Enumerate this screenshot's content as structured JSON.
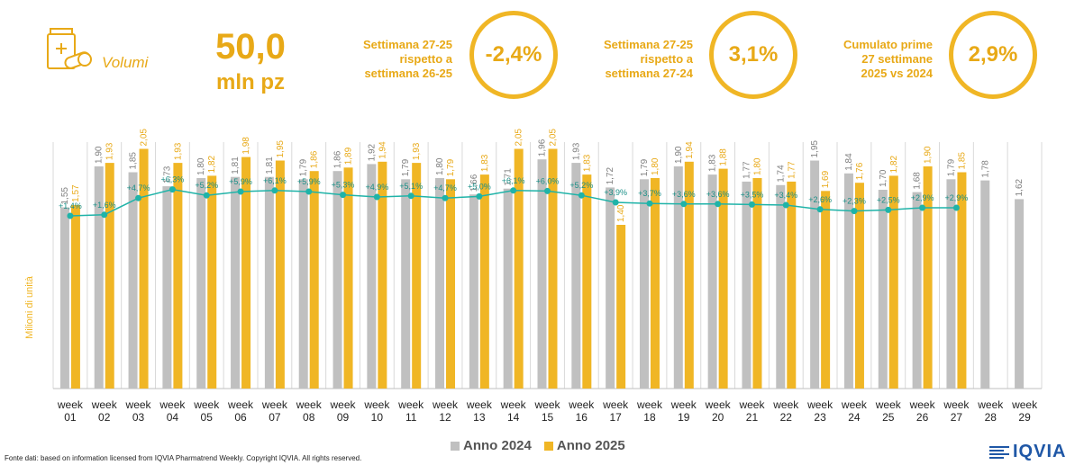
{
  "header": {
    "volumi_label": "Volumi",
    "volume_value": "50,0",
    "volume_unit": "mln pz",
    "kpis": [
      {
        "lines": [
          "Settimana 27-25",
          "rispetto a",
          "settimana 26-25"
        ],
        "value": "-2,4%"
      },
      {
        "lines": [
          "Settimana 27-25",
          "rispetto a",
          "settimana 27-24"
        ],
        "value": "3,1%"
      },
      {
        "lines": [
          "Cumulato prime",
          "27 settimane",
          "2025 vs 2024"
        ],
        "value": "2,9%"
      }
    ]
  },
  "colors": {
    "accent": "#e8a917",
    "anno_2024": "#c0c0c0",
    "anno_2025": "#f0b625",
    "growth_line": "#1fb3a8"
  },
  "icons": [
    "pill-box-icon"
  ],
  "chart_data": {
    "type": "bar",
    "ylabel": "Milioni di unità",
    "categories": [
      "week 01",
      "week 02",
      "week 03",
      "week 04",
      "week 05",
      "week 06",
      "week 07",
      "week 08",
      "week 09",
      "week 10",
      "week 11",
      "week 12",
      "week 13",
      "week 14",
      "week 15",
      "week 16",
      "week 17",
      "week 18",
      "week 19",
      "week 20",
      "week 21",
      "week 22",
      "week 23",
      "week 24",
      "week 25",
      "week 26",
      "week 27",
      "week 28",
      "week 29"
    ],
    "series": [
      {
        "name": "Anno 2024",
        "values": [
          1.55,
          1.9,
          1.85,
          1.73,
          1.8,
          1.81,
          1.81,
          1.79,
          1.86,
          1.92,
          1.79,
          1.8,
          1.66,
          1.71,
          1.96,
          1.93,
          1.72,
          1.79,
          1.9,
          1.83,
          1.77,
          1.74,
          1.95,
          1.84,
          1.7,
          1.68,
          1.79,
          1.78,
          1.62
        ]
      },
      {
        "name": "Anno 2025",
        "values": [
          1.57,
          1.93,
          2.05,
          1.93,
          1.82,
          1.98,
          1.95,
          1.86,
          1.89,
          1.94,
          1.93,
          1.79,
          1.83,
          2.05,
          2.05,
          1.83,
          1.4,
          1.8,
          1.94,
          1.88,
          1.8,
          1.77,
          1.69,
          1.76,
          1.82,
          1.9,
          1.85,
          null,
          null
        ]
      }
    ],
    "bar_labels_2024": [
      "1,55",
      "1,90",
      "1,85",
      "1,73",
      "1,80",
      "1,81",
      "1,81",
      "1,79",
      "1,86",
      "1,92",
      "1,79",
      "1,80",
      "1,66",
      "1,71",
      "1,96",
      "1,93",
      "1,72",
      "1,79",
      "1,90",
      "1,83",
      "1,77",
      "1,74",
      "1,95",
      "1,84",
      "1,70",
      "1,68",
      "1,79",
      "1,78",
      "1,62"
    ],
    "bar_labels_2025": [
      "1,57",
      "1,93",
      "2,05",
      "1,93",
      "1,82",
      "1,98",
      "1,95",
      "1,86",
      "1,89",
      "1,94",
      "1,93",
      "1,79",
      "1,83",
      "2,05",
      "2,05",
      "1,83",
      "1,40",
      "1,80",
      "1,94",
      "1,88",
      "1,80",
      "1,77",
      "1,69",
      "1,76",
      "1,82",
      "1,90",
      "1,85",
      "",
      ""
    ],
    "growth": {
      "values": [
        1.4,
        1.6,
        4.7,
        6.3,
        5.2,
        5.9,
        6.1,
        5.9,
        5.3,
        4.9,
        5.1,
        4.7,
        5.0,
        6.1,
        6.0,
        5.2,
        3.9,
        3.7,
        3.6,
        3.6,
        3.5,
        3.4,
        2.6,
        2.3,
        2.5,
        2.9,
        2.9
      ],
      "labels": [
        "+1,4%",
        "+1,6%",
        "+4,7%",
        "+6,3%",
        "+5,2%",
        "+5,9%",
        "+6,1%",
        "+5,9%",
        "+5,3%",
        "+4,9%",
        "+5,1%",
        "+4,7%",
        "+5,0%",
        "+6,1%",
        "+6,0%",
        "+5,2%",
        "+3,9%",
        "+3,7%",
        "+3,6%",
        "+3,6%",
        "+3,5%",
        "+3,4%",
        "+2,6%",
        "+2,3%",
        "+2,5%",
        "+2,9%",
        "+2,9%"
      ]
    },
    "legend": [
      "Anno 2024",
      "Anno 2025"
    ],
    "legend_position": "bottom"
  },
  "footer": {
    "source": "Fonte dati: based on information licensed from IQVIA Pharmatrend Weekly. Copyright IQVIA. All rights reserved.",
    "logo_text": "IQVIA"
  }
}
